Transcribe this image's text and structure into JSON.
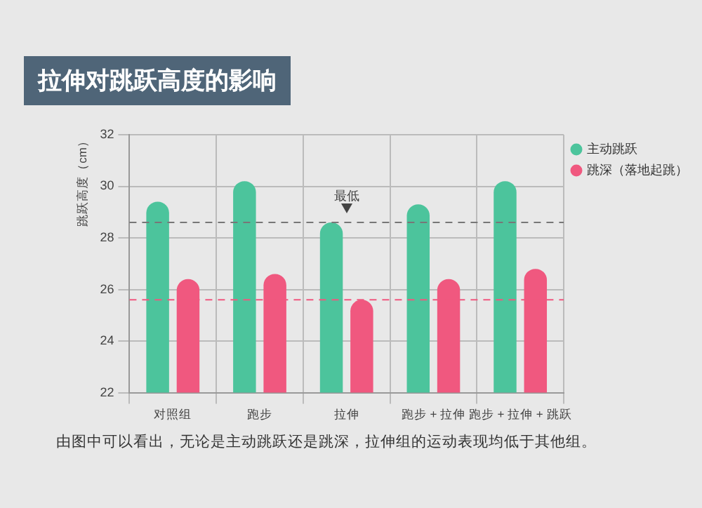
{
  "chart_data": {
    "type": "bar",
    "title": "拉伸对跳跃高度的影响",
    "ylabel": "跳跃高度（cm）",
    "categories": [
      "对照组",
      "跑步",
      "拉伸",
      "跑步 + 拉伸",
      "跑步 + 拉伸 + 跳跃"
    ],
    "series": [
      {
        "name": "主动跳跃",
        "color": "#4cc49c",
        "values": [
          29.4,
          30.2,
          28.6,
          29.3,
          30.2
        ]
      },
      {
        "name": "跳深（落地起跳）",
        "color": "#f0587f",
        "values": [
          26.4,
          26.6,
          25.6,
          26.4,
          26.8
        ]
      }
    ],
    "ylim": [
      22,
      32
    ],
    "yticks": [
      22,
      24,
      26,
      28,
      30,
      32
    ],
    "grid": true,
    "legend": "top right",
    "ref_lines": [
      {
        "axis": "y",
        "value": 28.6,
        "color": "#777777",
        "line_style": "dashed"
      },
      {
        "axis": "y",
        "value": 25.6,
        "color": "#f0587f",
        "line_style": "dashed"
      }
    ],
    "annotations": [
      {
        "text": "最低",
        "x": "拉伸",
        "y": 28.6
      },
      "由图中可以看出，无论是主动跳跃还是跳深，拉伸组的运动表现均低于其他组。"
    ]
  }
}
